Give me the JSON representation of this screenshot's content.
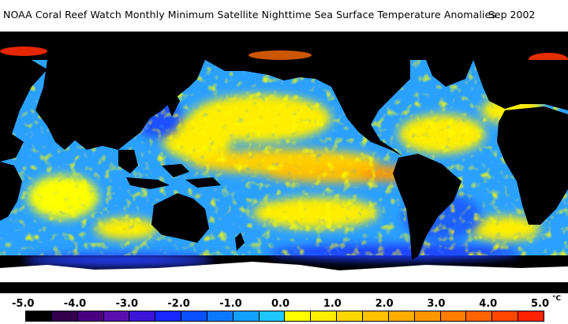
{
  "map": {
    "title": "NOAA Coral Reef Watch Monthly Minimum Satellite Nighttime Sea Surface Temperature Anomalies",
    "date": "Sep 2002",
    "land_color": "#000000",
    "ice_color": "#ffffff",
    "ocean_base_color": "#2aa0ff"
  },
  "legend": {
    "ticks": [
      "-5.0",
      "-4.0",
      "-3.0",
      "-2.0",
      "-1.0",
      "0.0",
      "1.0",
      "2.0",
      "3.0",
      "4.0",
      "5.0"
    ],
    "unit": "°C",
    "colors": [
      "#000000",
      "#33004d",
      "#4b0082",
      "#5a10b0",
      "#3c14d8",
      "#1428ff",
      "#0a50ff",
      "#0a78ff",
      "#14a0ff",
      "#1ec8ff",
      "#ffff00",
      "#ffee00",
      "#ffd700",
      "#ffc200",
      "#ffae00",
      "#ff9600",
      "#ff7d00",
      "#ff6400",
      "#ff4600",
      "#ff2200"
    ]
  }
}
